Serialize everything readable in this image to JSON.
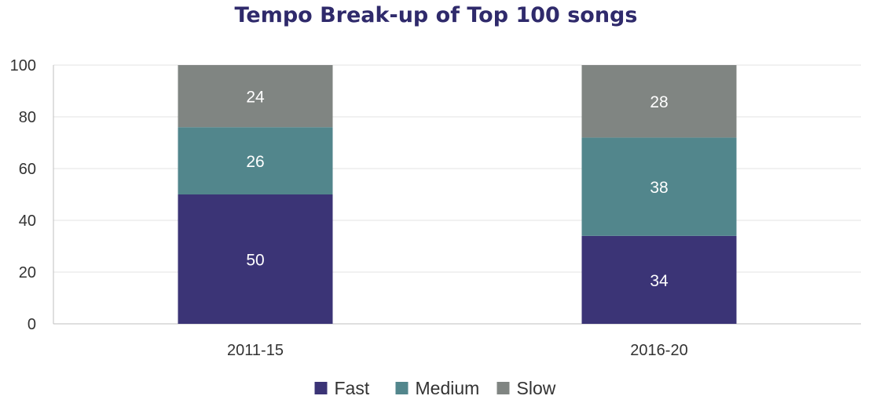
{
  "chart_data": {
    "type": "bar",
    "stacked": true,
    "title": "Tempo Break-up of Top 100 songs",
    "xlabel": "",
    "ylabel": "",
    "categories": [
      "2011-15",
      "2016-20"
    ],
    "series": [
      {
        "name": "Fast",
        "values": [
          50,
          34
        ],
        "color": "#3b3476"
      },
      {
        "name": "Medium",
        "values": [
          26,
          38
        ],
        "color": "#52868c"
      },
      {
        "name": "Slow",
        "values": [
          24,
          28
        ],
        "color": "#808582"
      }
    ],
    "ylim": [
      0,
      100
    ],
    "yticks": [
      0,
      20,
      40,
      60,
      80,
      100
    ],
    "grid": true,
    "legend": "bottom",
    "colors": {
      "title": "#2f2a6b",
      "grid": "#e3e3e3",
      "axis": "#bfbfbf"
    }
  }
}
